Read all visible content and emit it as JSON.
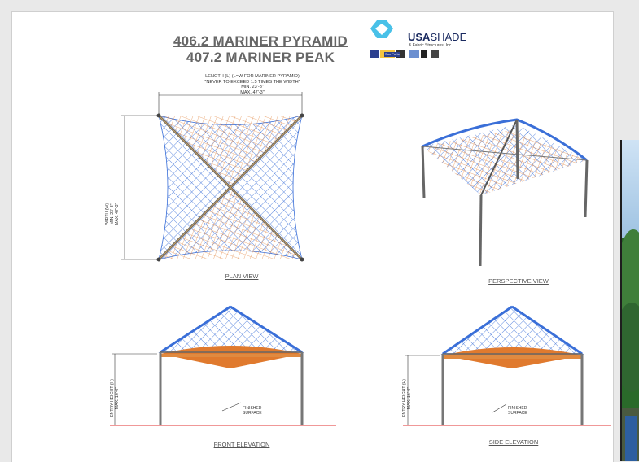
{
  "titles": {
    "line1": "406.2 MARINER PYRAMID",
    "line2": "407.2 MARINER PEAK"
  },
  "logo": {
    "brand_bold": "USA",
    "brand_rest": "SHADE",
    "subtitle": "& Fabric Structures, Inc.",
    "partner_badge": "Sun Ports"
  },
  "plan_note": {
    "line1": "LENGTH (L) (L=W FOR MARINER PYRAMID)",
    "line2": "*NEVER TO EXCEED 1.5 TIMES THE WIDTH*",
    "line3": "MIN. 23'-3\"",
    "line4": "MAX. 47'-3\""
  },
  "width_note": {
    "line1": "WIDTH (W)",
    "line2": "MIN. 23'-3\"",
    "line3": "MAX. 47'-3\""
  },
  "entry_note": {
    "line1": "ENTRY HEIGHT (H)",
    "line2": "MAX. 16'-0\""
  },
  "finished_surface": {
    "line1": "FINISHED",
    "line2": "SURFACE"
  },
  "views": {
    "plan": "PLAN VIEW",
    "perspective": "PERSPECTIVE VIEW",
    "front": "FRONT ELEVATION",
    "side": "SIDE ELEVATION"
  },
  "colors": {
    "fabric_blue": "#3a6fd8",
    "fabric_orange": "#e07a2e",
    "frame": "#555555",
    "ground_line": "#e03030"
  }
}
